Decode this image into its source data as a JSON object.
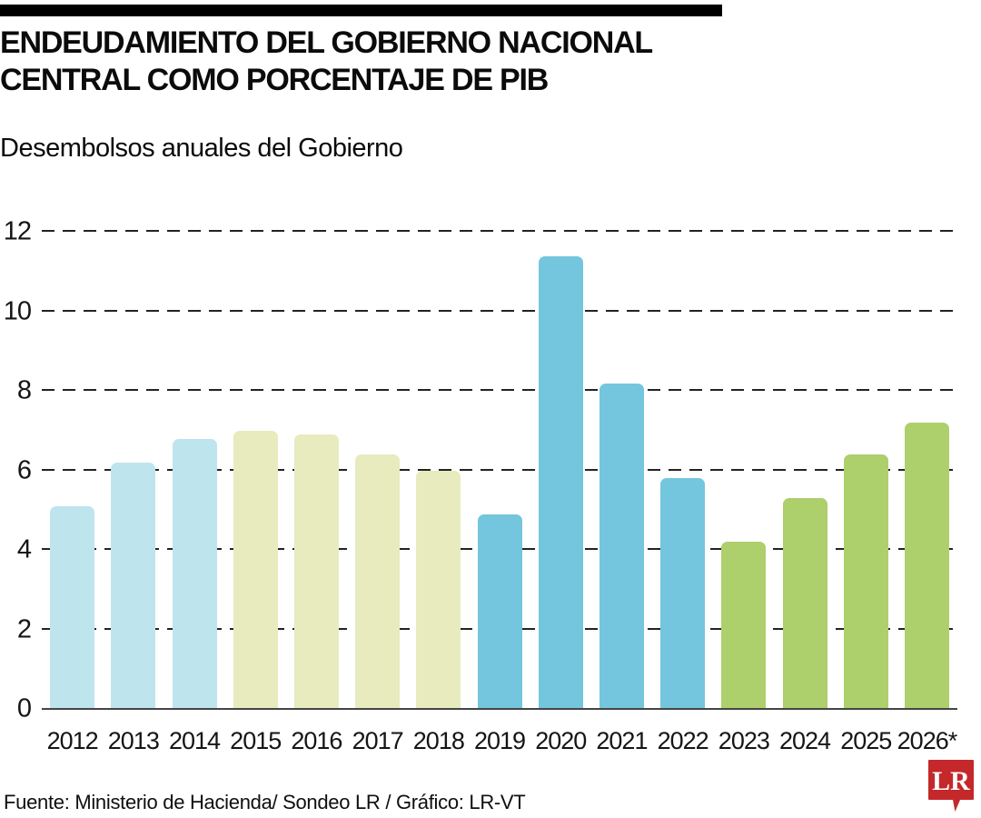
{
  "header": {
    "title_line1": "ENDEUDAMIENTO DEL GOBIERNO NACIONAL",
    "title_line2": "CENTRAL COMO PORCENTAJE DE PIB",
    "subtitle": "Desembolsos anuales del Gobierno"
  },
  "chart_data": {
    "type": "bar",
    "title": "Desembolsos anuales del Gobierno",
    "categories": [
      "2012",
      "2013",
      "2014",
      "2015",
      "2016",
      "2017",
      "2018",
      "2019",
      "2020",
      "2021",
      "2022",
      "2023",
      "2024",
      "2025",
      "2026*"
    ],
    "values": [
      5.1,
      6.2,
      6.8,
      7.0,
      6.9,
      6.4,
      6.0,
      4.9,
      11.4,
      8.2,
      5.8,
      4.2,
      5.3,
      6.4,
      7.2
    ],
    "bar_colors": [
      "#bee4ee",
      "#bee4ee",
      "#bee4ee",
      "#e7ebbe",
      "#e7ebbe",
      "#e7ebbe",
      "#e7ebbe",
      "#73c6dd",
      "#73c6dd",
      "#73c6dd",
      "#73c6dd",
      "#adcf6c",
      "#adcf6c",
      "#adcf6c",
      "#adcf6c"
    ],
    "color_groups": {
      "2012-2014": "#bee4ee",
      "2015-2018": "#e7ebbe",
      "2019-2022": "#73c6dd",
      "2023-2026*": "#adcf6c"
    },
    "xlabel": "",
    "ylabel": "",
    "ylim": [
      0,
      12.4
    ],
    "yticks": [
      0,
      2,
      4,
      6,
      8,
      10,
      12
    ],
    "grid": "horizontal-dashed",
    "gridline_color": "#232323",
    "axis_color": "#454545",
    "legend": "none"
  },
  "footer": {
    "source": "Fuente: Ministerio de Hacienda/ Sondeo LR  / Gráfico: LR-VT"
  },
  "logo": {
    "text": "LR",
    "bg_color": "#c5282a",
    "text_color": "#ffffff"
  }
}
